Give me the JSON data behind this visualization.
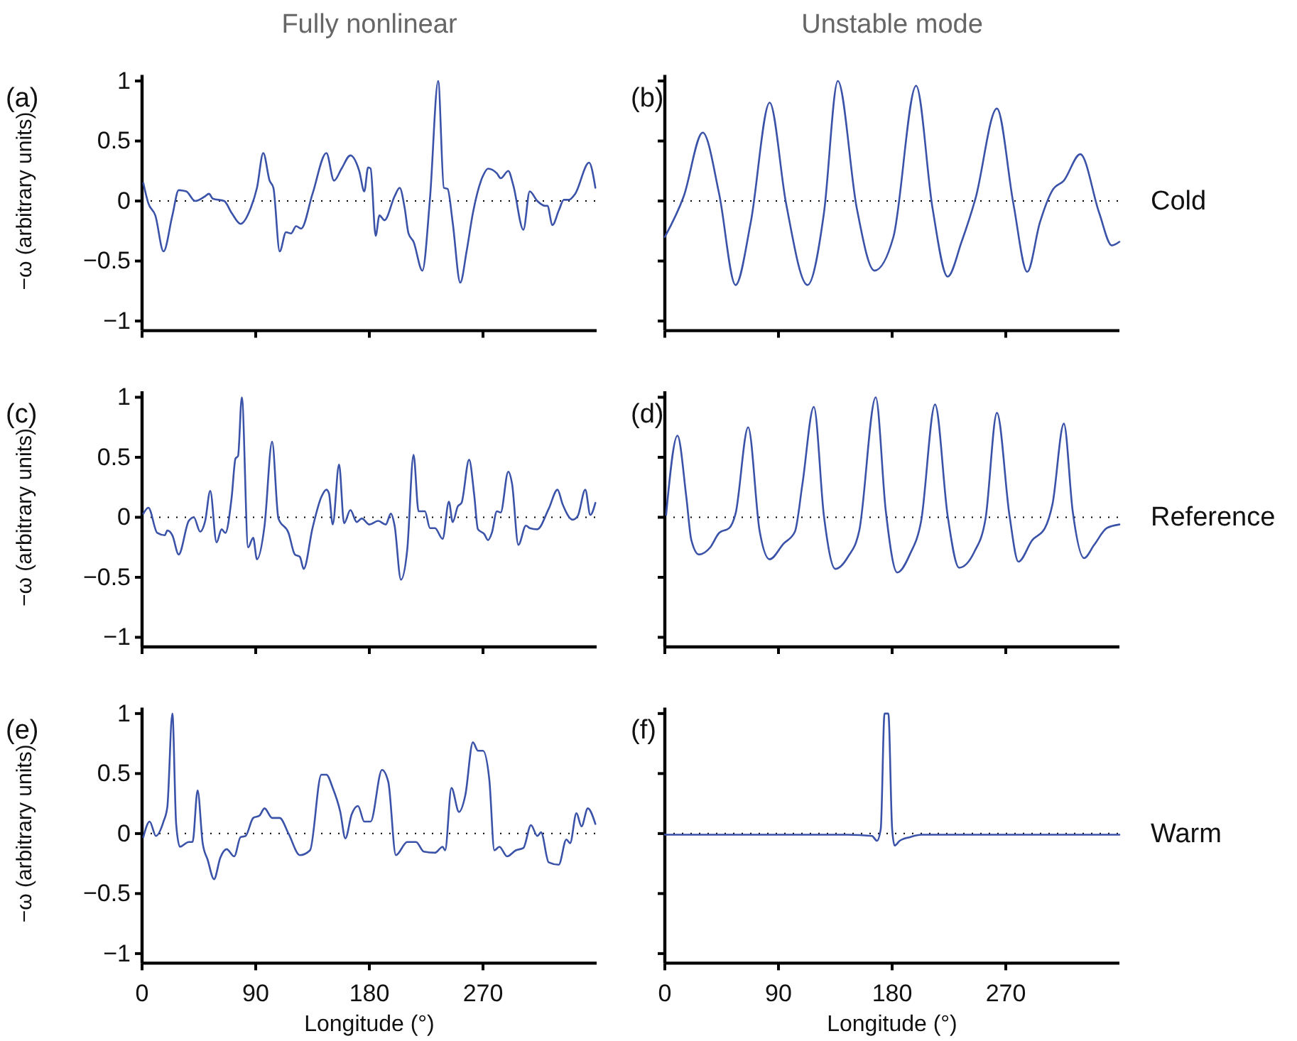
{
  "chart_data": [
    {
      "type": "line",
      "title": "(a)",
      "subtitle": "Fully nonlinear",
      "ylabel": "−ω (arbitrary units)",
      "xlim": [
        0,
        360
      ],
      "xticks": [
        0,
        90,
        180,
        270
      ],
      "ylim": [
        -1.08,
        1.05
      ],
      "yticks": [
        {
          "value": -1,
          "label": "−1"
        },
        {
          "value": -0.5,
          "label": "−0.5"
        },
        0,
        0.5,
        1
      ],
      "tick_labels": "y",
      "ref_lines": [
        {
          "axis": "y",
          "value": 0,
          "line_style": "dotted",
          "color": "#000000"
        }
      ],
      "series": [
        {
          "color": "#3a52a8",
          "x": [
            1,
            5,
            10.5,
            17,
            24,
            29,
            35,
            42,
            50,
            53,
            56,
            65,
            71,
            78,
            86,
            91,
            96,
            101,
            104,
            109,
            114,
            118,
            122,
            126,
            135,
            146,
            152,
            158,
            165,
            172,
            176,
            179,
            181,
            185,
            188,
            192,
            200,
            204,
            208,
            211,
            215,
            222,
            228,
            234.5,
            239,
            242,
            246,
            252,
            257,
            262,
            270,
            274,
            281,
            284,
            290,
            294,
            302,
            307,
            313,
            319,
            321,
            325,
            330,
            334,
            338,
            343,
            354,
            359
          ],
          "values": [
            0.15,
            -0.02,
            -0.12,
            -0.42,
            -0.12,
            0.09,
            0.08,
            0,
            0.04,
            0.06,
            0.02,
            0,
            -0.1,
            -0.19,
            -0.06,
            0.11,
            0.4,
            0.17,
            0.11,
            -0.42,
            -0.26,
            -0.27,
            -0.21,
            -0.23,
            0.06,
            0.4,
            0.17,
            0.27,
            0.38,
            0.25,
            0.08,
            0.28,
            0.27,
            -0.29,
            -0.12,
            -0.16,
            0.04,
            0.11,
            -0.06,
            -0.27,
            -0.34,
            -0.58,
            0.02,
            1.0,
            0.11,
            0.1,
            -0.18,
            -0.68,
            -0.42,
            -0.1,
            0.21,
            0.27,
            0.23,
            0.19,
            0.25,
            0.13,
            -0.24,
            0.08,
            0,
            -0.04,
            -0.04,
            -0.2,
            -0.08,
            0.01,
            0.01,
            0.06,
            0.32,
            0.11
          ]
        }
      ]
    },
    {
      "type": "line",
      "title": "(b)",
      "subtitle": "Unstable mode",
      "annotations": [
        "Cold"
      ],
      "xlim": [
        0,
        360
      ],
      "xticks": [
        0,
        90,
        180,
        270
      ],
      "ylim": [
        -1.08,
        1.05
      ],
      "yticks": [
        {
          "value": -1,
          "label": null
        },
        {
          "value": -0.5,
          "label": null
        },
        {
          "value": 0,
          "label": null
        },
        {
          "value": 0.5,
          "label": null
        },
        {
          "value": 1,
          "label": null
        }
      ],
      "tick_labels": false,
      "ref_lines": [
        {
          "axis": "y",
          "value": 0,
          "line_style": "dotted",
          "color": "#000000"
        }
      ],
      "series": [
        {
          "color": "#3a52a8",
          "x": [
            0,
            15,
            30,
            43,
            56,
            68,
            83,
            96,
            113,
            126,
            137,
            152,
            166,
            181,
            199,
            212,
            224,
            235,
            246,
            263,
            276,
            287,
            297,
            307,
            316,
            329,
            344,
            354,
            360
          ],
          "values": [
            -0.3,
            0.04,
            0.57,
            0.06,
            -0.7,
            -0.18,
            0.82,
            -0.02,
            -0.7,
            -0.1,
            1.0,
            -0.06,
            -0.58,
            -0.3,
            0.96,
            -0.06,
            -0.63,
            -0.34,
            0.02,
            0.77,
            -0.02,
            -0.59,
            -0.18,
            0.09,
            0.17,
            0.39,
            -0.1,
            -0.37,
            -0.34
          ]
        }
      ]
    },
    {
      "type": "line",
      "title": "(c)",
      "ylabel": "−ω (arbitrary units)",
      "xlim": [
        0,
        360
      ],
      "xticks": [
        0,
        90,
        180,
        270
      ],
      "ylim": [
        -1.08,
        1.05
      ],
      "yticks": [
        {
          "value": -1,
          "label": "−1"
        },
        {
          "value": -0.5,
          "label": "−0.5"
        },
        0,
        0.5,
        1
      ],
      "tick_labels": "y",
      "ref_lines": [
        {
          "axis": "y",
          "value": 0,
          "line_style": "dotted",
          "color": "#000000"
        }
      ],
      "series": [
        {
          "color": "#3a52a8",
          "x": [
            1,
            5,
            12,
            18,
            20,
            24,
            29,
            37,
            41,
            46,
            50,
            54,
            59,
            63,
            66,
            71,
            74,
            76,
            79,
            84,
            88,
            91,
            97,
            103,
            108,
            116,
            121,
            125,
            128,
            135,
            142,
            146,
            148,
            151,
            156,
            160,
            165,
            170,
            174,
            180,
            187,
            193,
            197,
            200,
            205,
            210,
            215,
            219,
            224,
            228,
            232,
            238,
            243,
            246,
            250,
            253,
            259,
            263,
            266,
            271,
            274,
            277,
            281,
            284,
            290,
            293,
            298,
            304,
            307,
            313,
            322,
            329,
            333,
            341,
            345,
            351,
            355,
            359
          ],
          "values": [
            0.03,
            0.08,
            -0.13,
            -0.15,
            -0.11,
            -0.15,
            -0.31,
            -0.03,
            0,
            -0.12,
            -0.03,
            0.22,
            -0.21,
            -0.1,
            -0.13,
            0.17,
            0.49,
            0.51,
            1.0,
            -0.25,
            -0.17,
            -0.35,
            -0.07,
            0.63,
            -0.01,
            -0.13,
            -0.31,
            -0.33,
            -0.43,
            -0.09,
            0.17,
            0.23,
            0.2,
            -0.06,
            0.44,
            -0.05,
            0.06,
            -0.04,
            -0.01,
            -0.06,
            -0.03,
            -0.06,
            0.03,
            -0.07,
            -0.52,
            -0.27,
            0.52,
            0.05,
            0.05,
            -0.09,
            -0.09,
            -0.18,
            0.13,
            -0.04,
            0.09,
            0.12,
            0.48,
            0.19,
            -0.1,
            -0.14,
            -0.19,
            -0.13,
            0.05,
            0.04,
            0.38,
            0.28,
            -0.23,
            -0.07,
            -0.09,
            -0.1,
            0.07,
            0.23,
            0.11,
            -0.02,
            0.01,
            0.23,
            0.02,
            0.12
          ]
        }
      ]
    },
    {
      "type": "line",
      "title": "(d)",
      "annotations": [
        "Reference"
      ],
      "xlim": [
        0,
        360
      ],
      "xticks": [
        0,
        90,
        180,
        270
      ],
      "ylim": [
        -1.08,
        1.05
      ],
      "yticks": [
        {
          "value": -1,
          "label": null
        },
        {
          "value": -0.5,
          "label": null
        },
        {
          "value": 0,
          "label": null
        },
        {
          "value": 0.5,
          "label": null
        },
        {
          "value": 1,
          "label": null
        }
      ],
      "tick_labels": false,
      "ref_lines": [
        {
          "axis": "y",
          "value": 0,
          "line_style": "dotted",
          "color": "#000000"
        }
      ],
      "series": [
        {
          "color": "#3a52a8",
          "x": [
            1,
            10,
            17,
            21,
            27,
            36,
            43,
            51,
            56,
            66,
            75,
            83,
            94,
            103,
            109,
            118,
            126,
            135,
            145,
            154,
            167,
            175,
            184,
            194,
            203,
            214,
            224,
            233,
            245,
            254,
            263,
            273,
            280,
            291,
            301,
            307,
            316,
            323,
            332,
            340,
            350,
            360
          ],
          "values": [
            0.02,
            0.68,
            0.17,
            -0.19,
            -0.31,
            -0.25,
            -0.13,
            -0.09,
            0.03,
            0.75,
            -0.11,
            -0.35,
            -0.22,
            -0.12,
            0.28,
            0.92,
            0.01,
            -0.43,
            -0.33,
            -0.11,
            1.0,
            0.05,
            -0.46,
            -0.31,
            -0.03,
            0.94,
            0.01,
            -0.42,
            -0.29,
            -0.01,
            0.87,
            0.01,
            -0.37,
            -0.19,
            -0.09,
            0.11,
            0.78,
            0.05,
            -0.34,
            -0.23,
            -0.09,
            -0.06
          ]
        }
      ]
    },
    {
      "type": "line",
      "title": "(e)",
      "ylabel": "−ω (arbitrary units)",
      "xlabel": "Longitude (°)",
      "xlim": [
        0,
        360
      ],
      "xticks": [
        0,
        90,
        180,
        270
      ],
      "ylim": [
        -1.08,
        1.05
      ],
      "yticks": [
        {
          "value": -1,
          "label": "−1"
        },
        {
          "value": -0.5,
          "label": "−0.5"
        },
        0,
        0.5,
        1
      ],
      "ref_lines": [
        {
          "axis": "y",
          "value": 0,
          "line_style": "dotted",
          "color": "#000000"
        }
      ],
      "series": [
        {
          "color": "#3a52a8",
          "x": [
            1,
            6,
            11,
            17,
            20,
            24,
            27,
            30,
            37,
            40,
            44,
            48,
            52,
            57,
            62,
            67,
            73,
            78,
            82,
            88,
            93,
            97,
            103,
            109,
            116,
            125,
            133,
            142,
            146,
            151,
            157,
            161,
            166,
            171,
            176,
            181,
            190,
            195,
            201,
            210,
            217,
            223,
            232,
            238,
            240,
            245,
            251,
            256,
            262,
            266,
            270,
            275,
            279,
            283,
            289,
            296,
            302,
            308,
            313,
            316,
            322,
            330,
            336,
            339,
            344,
            348,
            353,
            359
          ],
          "values": [
            -0.03,
            0.1,
            -0.02,
            0.1,
            0.22,
            1.0,
            0.08,
            -0.11,
            -0.07,
            -0.07,
            0.36,
            -0.08,
            -0.22,
            -0.38,
            -0.2,
            -0.13,
            -0.19,
            -0.03,
            -0.02,
            0.13,
            0.15,
            0.21,
            0.13,
            0.13,
            0,
            -0.18,
            -0.14,
            0.49,
            0.49,
            0.38,
            0.18,
            -0.04,
            0.16,
            0.23,
            0.1,
            0.1,
            0.53,
            0.43,
            -0.18,
            -0.07,
            -0.07,
            -0.15,
            -0.16,
            -0.11,
            -0.14,
            0.38,
            0.18,
            0.32,
            0.76,
            0.69,
            0.69,
            0.45,
            -0.14,
            -0.11,
            -0.19,
            -0.14,
            -0.12,
            0.07,
            -0.02,
            0.01,
            -0.24,
            -0.26,
            -0.05,
            -0.08,
            0.17,
            0.06,
            0.21,
            0.08
          ]
        }
      ]
    },
    {
      "type": "line",
      "title": "(f)",
      "xlabel": "Longitude (°)",
      "annotations": [
        "Warm"
      ],
      "xlim": [
        0,
        360
      ],
      "xticks": [
        0,
        90,
        180,
        270
      ],
      "ylim": [
        -1.08,
        1.05
      ],
      "yticks": [
        {
          "value": -1,
          "label": null
        },
        {
          "value": -0.5,
          "label": null
        },
        {
          "value": 0,
          "label": null
        },
        {
          "value": 0.5,
          "label": null
        },
        {
          "value": 1,
          "label": null
        }
      ],
      "tick_labels": "x",
      "ref_lines": [
        {
          "axis": "y",
          "value": 0,
          "line_style": "dotted",
          "color": "#000000"
        }
      ],
      "series": [
        {
          "color": "#3a52a8",
          "x": [
            0,
            118,
            145,
            164,
            168,
            171,
            174,
            177,
            180,
            182,
            186,
            194,
            203,
            360
          ],
          "values": [
            -0.01,
            -0.01,
            -0.01,
            -0.02,
            -0.06,
            0.04,
            1.0,
            1.0,
            0.04,
            -0.1,
            -0.06,
            -0.03,
            -0.01,
            -0.01
          ]
        }
      ]
    }
  ]
}
